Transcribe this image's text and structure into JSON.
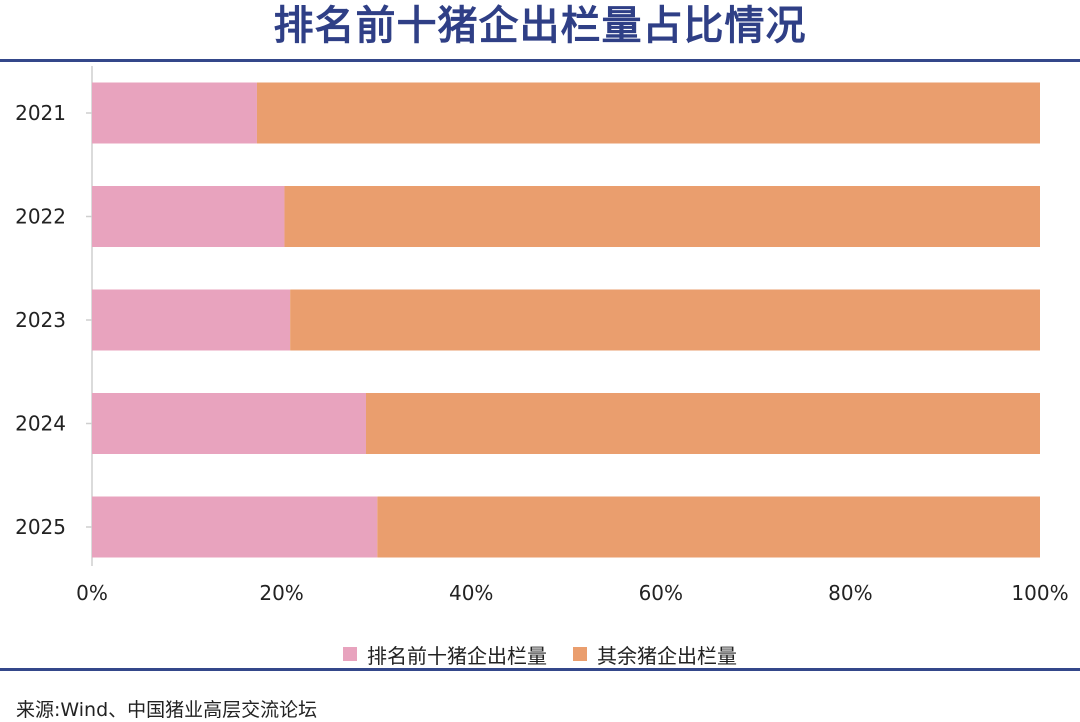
{
  "title": "排名前十猪企出栏量占比情况",
  "source": "来源:Wind、中国猪业高层交流论坛",
  "chart_data": {
    "type": "bar",
    "orientation": "horizontal",
    "stacked": "percent",
    "title": "排名前十猪企出栏量占比情况",
    "categories": [
      "2021",
      "2022",
      "2023",
      "2024",
      "2025"
    ],
    "series": [
      {
        "name": "排名前十猪企出栏量",
        "color": "#e8a3be",
        "values": [
          17.4,
          20.3,
          20.9,
          28.9,
          30.1
        ]
      },
      {
        "name": "其余猪企出栏量",
        "color": "#ea9e6e",
        "values": [
          82.6,
          79.7,
          79.1,
          71.1,
          69.9
        ]
      }
    ],
    "xlim": [
      0,
      100
    ],
    "xticks": [
      "0%",
      "20%",
      "40%",
      "60%",
      "80%",
      "100%"
    ],
    "grid": false,
    "legend": "bottom"
  }
}
